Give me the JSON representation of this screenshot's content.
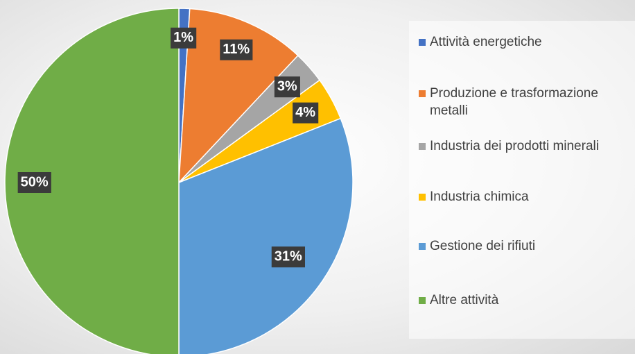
{
  "chart_data": {
    "type": "pie",
    "categories": [
      "Attività energetiche",
      "Produzione e trasformazione metalli",
      "Industria dei prodotti minerali",
      "Industria chimica",
      "Gestione dei rifiuti",
      "Altre attività"
    ],
    "values": [
      1,
      11,
      3,
      4,
      31,
      50
    ],
    "value_labels": [
      "1%",
      "11%",
      "3%",
      "4%",
      "31%",
      "50%"
    ],
    "colors": [
      "#4472c4",
      "#ed7d31",
      "#a5a5a5",
      "#ffc000",
      "#5b9bd5",
      "#70ad47"
    ],
    "legend": "right"
  }
}
